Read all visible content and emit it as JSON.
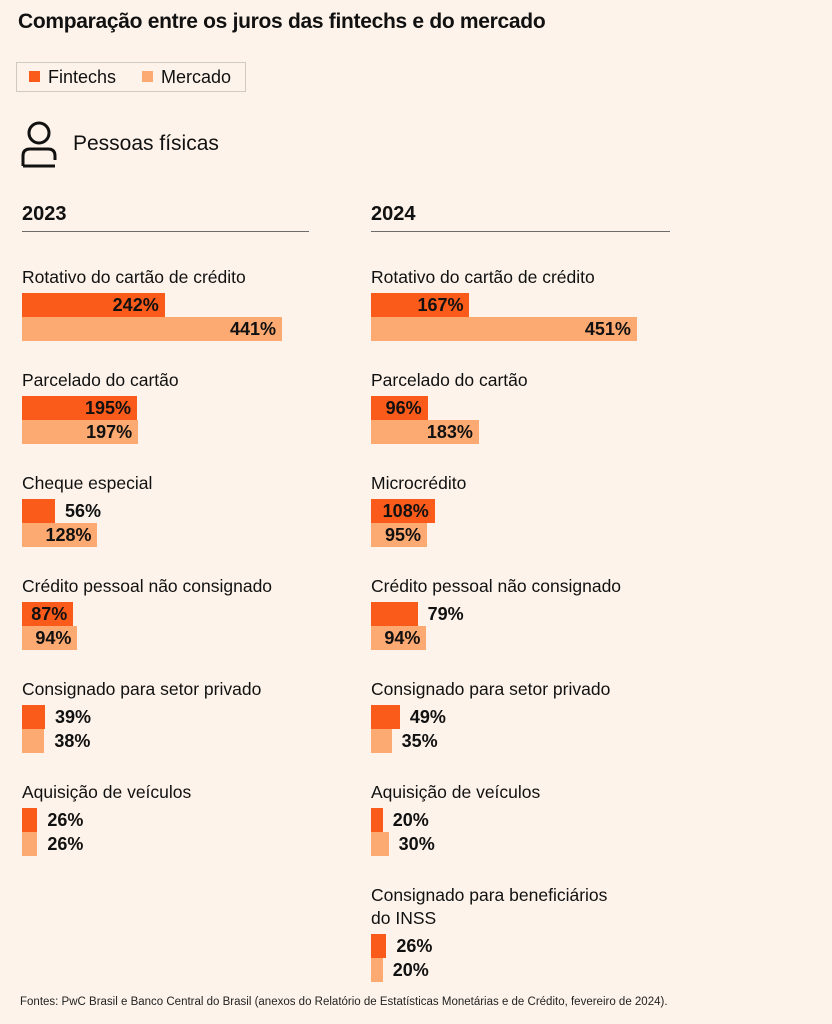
{
  "header": {
    "title": "Comparação entre os juros das fintechs e do mercado",
    "section": "Pessoas físicas"
  },
  "legend": [
    {
      "label": "Fintechs",
      "color": "#fb5b1a"
    },
    {
      "label": "Mercado",
      "color": "#fdaa72"
    }
  ],
  "colors": {
    "fintechs": "#fb5b1a",
    "mercado": "#fdaa72",
    "background": "#fdf3ea"
  },
  "icons": {
    "section": "person-icon"
  },
  "source": "Fontes: PwC Brasil e Banco Central do Brasil (anexos do Relatório de Estatísticas Monetárias e de Crédito, fevereiro de 2024).",
  "chart_data": [
    {
      "type": "bar",
      "orientation": "horizontal",
      "title": "2023",
      "unit": "%",
      "categories": [
        "Rotativo do cartão de crédito",
        "Parcelado do cartão",
        "Cheque especial",
        "Crédito pessoal não consignado",
        "Consignado para setor privado",
        "Aquisição de veículos"
      ],
      "series": [
        {
          "name": "Fintechs",
          "values": [
            242,
            195,
            56,
            87,
            39,
            26
          ],
          "labels": [
            "242%",
            "195%",
            "56%",
            "87%",
            "39%",
            "26%"
          ]
        },
        {
          "name": "Mercado",
          "values": [
            441,
            197,
            128,
            94,
            38,
            26
          ],
          "labels": [
            "441%",
            "197%",
            "128%",
            "94%",
            "38%",
            "26%"
          ]
        }
      ]
    },
    {
      "type": "bar",
      "orientation": "horizontal",
      "title": "2024",
      "unit": "%",
      "categories": [
        "Rotativo do cartão de crédito",
        "Parcelado do cartão",
        "Microcrédito",
        "Crédito pessoal não consignado",
        "Consignado para setor privado",
        "Aquisição de veículos",
        "Consignado para beneficiários\ndo INSS"
      ],
      "series": [
        {
          "name": "Fintechs",
          "values": [
            167,
            96,
            108,
            79,
            49,
            20,
            26
          ],
          "labels": [
            "167%",
            "96%",
            "108%",
            "79%",
            "49%",
            "20%",
            "26%"
          ]
        },
        {
          "name": "Mercado",
          "values": [
            451,
            183,
            95,
            94,
            35,
            30,
            20
          ],
          "labels": [
            "451%",
            "183%",
            "95%",
            "94%",
            "35%",
            "30%",
            "20%"
          ]
        }
      ]
    }
  ]
}
